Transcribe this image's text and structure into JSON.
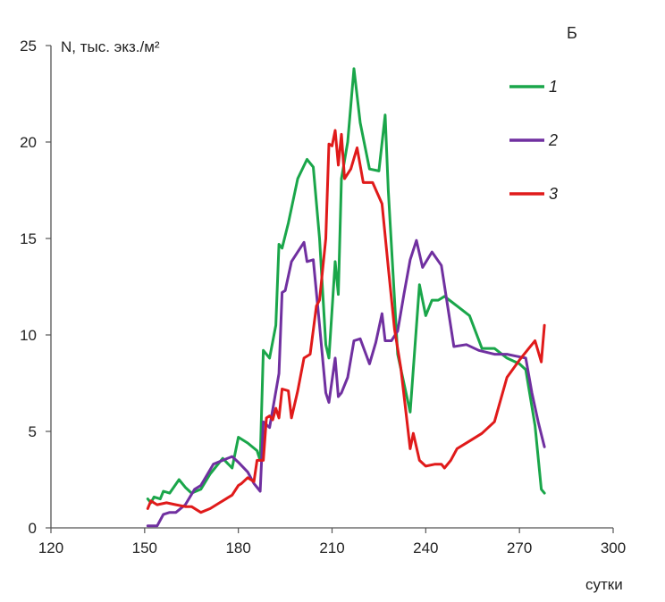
{
  "chart_data": {
    "type": "line",
    "panel_label": "Б",
    "ylabel": "N, тыс. экз./м²",
    "xlabel": "сутки",
    "xlim": [
      120,
      300
    ],
    "ylim": [
      0,
      25
    ],
    "x_ticks": [
      120,
      150,
      180,
      210,
      240,
      270,
      300
    ],
    "y_ticks": [
      0,
      5,
      10,
      15,
      20,
      25
    ],
    "grid": false,
    "legend_position": "top-right",
    "series": [
      {
        "name": "1",
        "color": "#1aa64a",
        "points": [
          [
            151,
            1.5
          ],
          [
            152,
            1.3
          ],
          [
            153,
            1.6
          ],
          [
            155,
            1.5
          ],
          [
            156,
            1.9
          ],
          [
            158,
            1.8
          ],
          [
            161,
            2.5
          ],
          [
            163,
            2.1
          ],
          [
            165,
            1.8
          ],
          [
            168,
            2.0
          ],
          [
            171,
            2.8
          ],
          [
            175,
            3.6
          ],
          [
            178,
            3.1
          ],
          [
            180,
            4.7
          ],
          [
            183,
            4.4
          ],
          [
            186,
            4.0
          ],
          [
            187,
            3.5
          ],
          [
            188,
            9.2
          ],
          [
            190,
            8.8
          ],
          [
            192,
            10.5
          ],
          [
            193,
            14.7
          ],
          [
            194,
            14.5
          ],
          [
            196,
            15.8
          ],
          [
            199,
            18.1
          ],
          [
            202,
            19.1
          ],
          [
            204,
            18.7
          ],
          [
            206,
            15.0
          ],
          [
            208,
            9.5
          ],
          [
            209,
            8.8
          ],
          [
            211,
            13.8
          ],
          [
            212,
            12.1
          ],
          [
            213,
            18.1
          ],
          [
            215,
            20.0
          ],
          [
            217,
            23.8
          ],
          [
            219,
            21.0
          ],
          [
            222,
            18.6
          ],
          [
            225,
            18.5
          ],
          [
            227,
            21.4
          ],
          [
            228,
            17.5
          ],
          [
            231,
            9.0
          ],
          [
            235,
            6.0
          ],
          [
            238,
            12.6
          ],
          [
            240,
            11.0
          ],
          [
            242,
            11.8
          ],
          [
            244,
            11.8
          ],
          [
            246,
            12.0
          ],
          [
            250,
            11.5
          ],
          [
            254,
            11.0
          ],
          [
            258,
            9.3
          ],
          [
            262,
            9.3
          ],
          [
            266,
            8.8
          ],
          [
            270,
            8.5
          ],
          [
            272,
            8.2
          ],
          [
            275,
            5.3
          ],
          [
            277,
            2.0
          ],
          [
            278,
            1.8
          ]
        ]
      },
      {
        "name": "2",
        "color": "#7030a0",
        "points": [
          [
            151,
            0.1
          ],
          [
            154,
            0.1
          ],
          [
            156,
            0.7
          ],
          [
            158,
            0.8
          ],
          [
            160,
            0.8
          ],
          [
            163,
            1.2
          ],
          [
            166,
            2.0
          ],
          [
            168,
            2.2
          ],
          [
            172,
            3.3
          ],
          [
            175,
            3.5
          ],
          [
            178,
            3.7
          ],
          [
            180,
            3.4
          ],
          [
            183,
            2.9
          ],
          [
            185,
            2.3
          ],
          [
            187,
            1.9
          ],
          [
            188,
            5.5
          ],
          [
            190,
            5.2
          ],
          [
            193,
            8.0
          ],
          [
            194,
            12.2
          ],
          [
            195,
            12.3
          ],
          [
            197,
            13.8
          ],
          [
            199,
            14.3
          ],
          [
            201,
            14.8
          ],
          [
            202,
            13.8
          ],
          [
            204,
            13.9
          ],
          [
            206,
            10.5
          ],
          [
            208,
            7.0
          ],
          [
            209,
            6.5
          ],
          [
            211,
            8.8
          ],
          [
            212,
            6.8
          ],
          [
            213,
            7.0
          ],
          [
            215,
            7.8
          ],
          [
            217,
            9.7
          ],
          [
            219,
            9.8
          ],
          [
            222,
            8.5
          ],
          [
            224,
            9.6
          ],
          [
            226,
            11.1
          ],
          [
            227,
            9.7
          ],
          [
            229,
            9.7
          ],
          [
            231,
            10.2
          ],
          [
            233,
            12.1
          ],
          [
            235,
            13.9
          ],
          [
            237,
            14.9
          ],
          [
            239,
            13.5
          ],
          [
            242,
            14.3
          ],
          [
            245,
            13.6
          ],
          [
            247,
            11.5
          ],
          [
            249,
            9.4
          ],
          [
            253,
            9.5
          ],
          [
            257,
            9.2
          ],
          [
            262,
            9.0
          ],
          [
            266,
            9.0
          ],
          [
            269,
            8.9
          ],
          [
            272,
            8.8
          ],
          [
            274,
            7.0
          ],
          [
            276,
            5.5
          ],
          [
            278,
            4.2
          ]
        ]
      },
      {
        "name": "3",
        "color": "#e01a1a",
        "points": [
          [
            151,
            1.0
          ],
          [
            152,
            1.4
          ],
          [
            154,
            1.2
          ],
          [
            157,
            1.3
          ],
          [
            160,
            1.2
          ],
          [
            163,
            1.1
          ],
          [
            165,
            1.1
          ],
          [
            168,
            0.8
          ],
          [
            171,
            1.0
          ],
          [
            174,
            1.3
          ],
          [
            178,
            1.7
          ],
          [
            180,
            2.2
          ],
          [
            181,
            2.3
          ],
          [
            183,
            2.6
          ],
          [
            185,
            2.4
          ],
          [
            186,
            3.5
          ],
          [
            188,
            3.5
          ],
          [
            189,
            5.7
          ],
          [
            190,
            5.8
          ],
          [
            191,
            5.6
          ],
          [
            192,
            6.2
          ],
          [
            193,
            5.7
          ],
          [
            194,
            7.2
          ],
          [
            196,
            7.1
          ],
          [
            197,
            5.7
          ],
          [
            199,
            7.1
          ],
          [
            201,
            8.8
          ],
          [
            203,
            9.0
          ],
          [
            205,
            11.5
          ],
          [
            206,
            11.8
          ],
          [
            208,
            15.0
          ],
          [
            209,
            19.9
          ],
          [
            210,
            19.8
          ],
          [
            211,
            20.6
          ],
          [
            212,
            18.8
          ],
          [
            213,
            20.4
          ],
          [
            214,
            18.1
          ],
          [
            216,
            18.6
          ],
          [
            218,
            19.7
          ],
          [
            220,
            17.9
          ],
          [
            223,
            17.9
          ],
          [
            226,
            16.8
          ],
          [
            228,
            13.5
          ],
          [
            230,
            10.3
          ],
          [
            232,
            8.3
          ],
          [
            235,
            4.1
          ],
          [
            236,
            4.9
          ],
          [
            238,
            3.5
          ],
          [
            240,
            3.2
          ],
          [
            243,
            3.3
          ],
          [
            245,
            3.3
          ],
          [
            246,
            3.1
          ],
          [
            248,
            3.5
          ],
          [
            250,
            4.1
          ],
          [
            254,
            4.5
          ],
          [
            258,
            4.9
          ],
          [
            262,
            5.5
          ],
          [
            266,
            7.8
          ],
          [
            270,
            8.7
          ],
          [
            273,
            9.3
          ],
          [
            275,
            9.7
          ],
          [
            277,
            8.6
          ],
          [
            278,
            10.5
          ]
        ]
      }
    ]
  }
}
